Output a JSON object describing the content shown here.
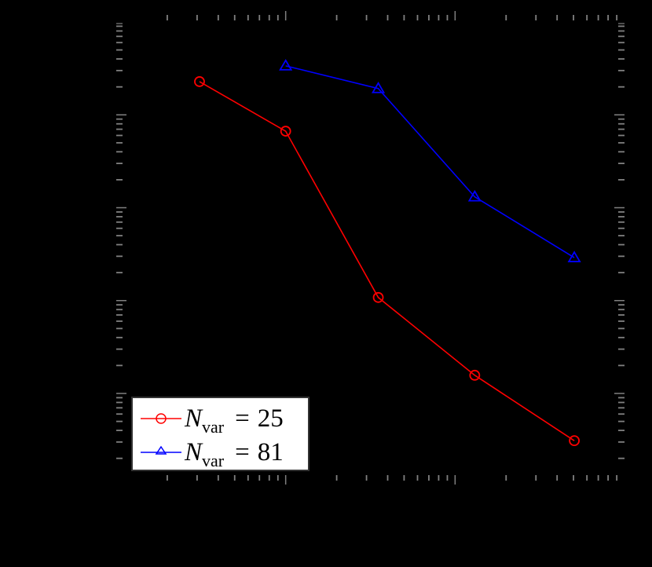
{
  "chart_data": {
    "type": "line",
    "title": "",
    "xlabel": "",
    "ylabel": "",
    "xscale": "log",
    "yscale": "log",
    "xlim": [
      10,
      10000
    ],
    "ylim": [
      1.4e-05,
      1
    ],
    "grid": false,
    "legend_position": "lower left",
    "background": "#000000",
    "tick_color": "#808080",
    "x_major_ticks": [
      10,
      100,
      1000,
      10000
    ],
    "y_major_ticks": [
      0.0001,
      0.001,
      0.01,
      0.1,
      1
    ],
    "series": [
      {
        "name": "N_var = 25",
        "label_main": "N",
        "label_sub": "var",
        "label_value": "25",
        "color": "#ff0000",
        "marker": "circle",
        "x": [
          31,
          100,
          352,
          1306,
          5055
        ],
        "values": [
          0.228,
          0.0667,
          0.00108,
          0.000157,
          3.1e-05
        ]
      },
      {
        "name": "N_var = 81",
        "label_main": "N",
        "label_sub": "var",
        "label_value": "81",
        "color": "#0000ff",
        "marker": "triangle",
        "x": [
          100,
          352,
          1306,
          5055
        ],
        "values": [
          0.337,
          0.192,
          0.0131,
          0.0029
        ]
      }
    ]
  },
  "legend": {
    "items": [
      {
        "main": "N",
        "sub": "var",
        "eq": "=",
        "value": "25"
      },
      {
        "main": "N",
        "sub": "var",
        "eq": "=",
        "value": "81"
      }
    ]
  }
}
